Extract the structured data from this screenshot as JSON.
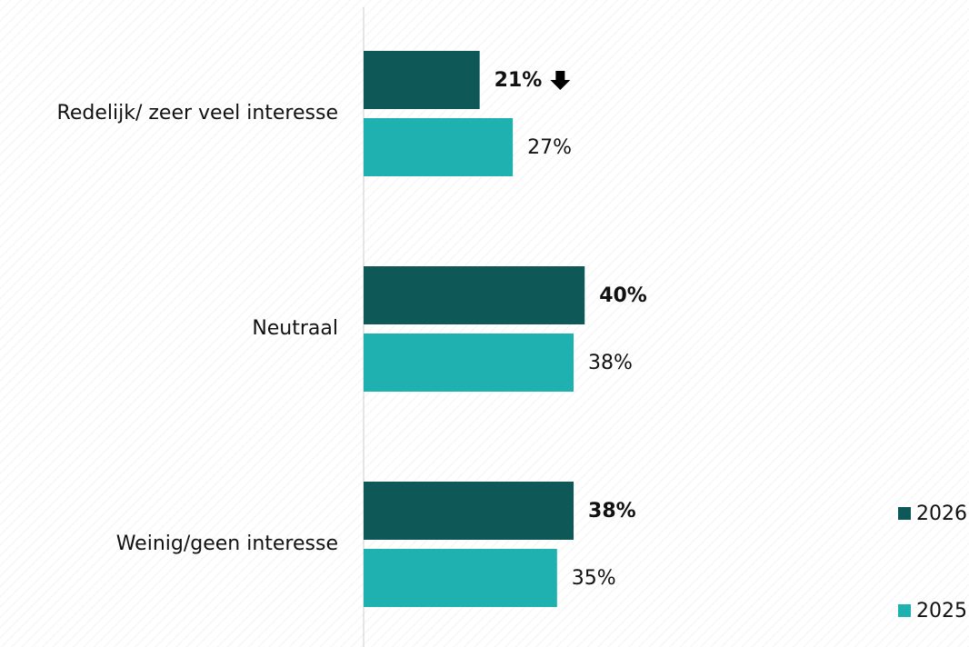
{
  "chart_data": {
    "type": "hbar",
    "categories": [
      "Redelijk/ zeer veel interesse",
      "Neutraal",
      "Weinig/geen interesse"
    ],
    "series": [
      {
        "name": "2026",
        "color": "#0e5957",
        "values": [
          21,
          40,
          38
        ],
        "value_labels": [
          "21%",
          "40%",
          "38%"
        ],
        "bold": true,
        "trend": [
          "down",
          null,
          null
        ]
      },
      {
        "name": "2025",
        "color": "#1fb0b0",
        "values": [
          27,
          38,
          35
        ],
        "value_labels": [
          "27%",
          "38%",
          "35%"
        ],
        "bold": false
      }
    ],
    "legend": "bottom-right"
  }
}
